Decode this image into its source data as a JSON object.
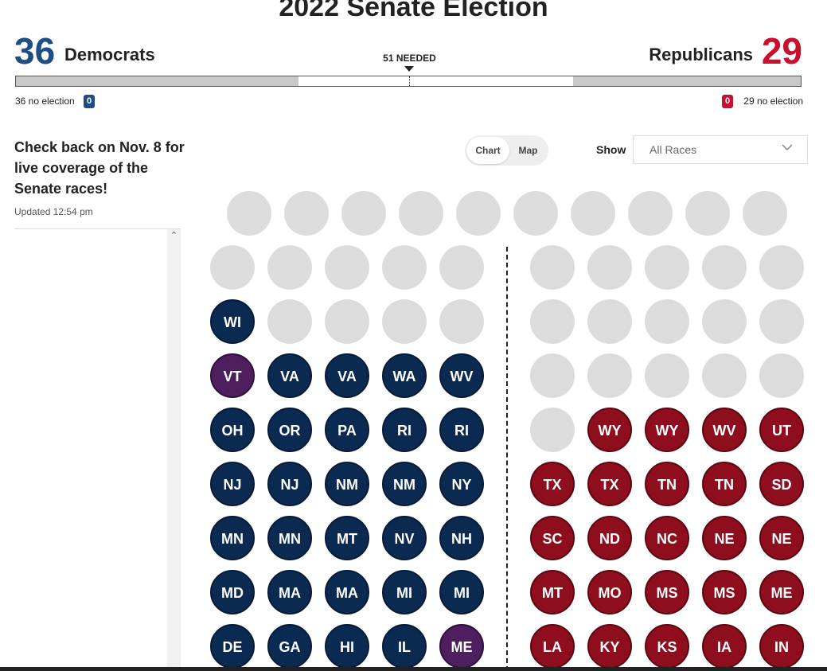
{
  "header": {
    "title": "2022 Senate Election",
    "needed_label": "51 NEEDED"
  },
  "democrats": {
    "count": "36",
    "label": "Democrats",
    "no_election": "36 no election",
    "badge": "0",
    "color": "#1f4e85",
    "no_election_share": 0.36
  },
  "republicans": {
    "count": "29",
    "label": "Republicans",
    "no_election": "29 no election",
    "badge": "0",
    "color": "#c8102e",
    "no_election_share": 0.29
  },
  "sidebar": {
    "headline": "Check back on Nov. 8 for live coverage of the Senate races!",
    "updated": "Updated 12:54 pm"
  },
  "controls": {
    "toggle_chart": "Chart",
    "toggle_map": "Map",
    "show_label": "Show",
    "show_value": "All Races"
  },
  "seat_colors": {
    "democrat": "#0b2a52",
    "republican": "#8f0e1e",
    "independent": "#4d1f5e",
    "undecided": "#dcdcdc"
  },
  "seat_rows": [
    {
      "left": [
        "",
        "",
        "",
        "",
        ""
      ],
      "right": [
        "",
        "",
        "",
        "",
        ""
      ],
      "top": true
    },
    {
      "left": [
        "",
        "",
        "",
        "",
        ""
      ],
      "right": [
        "",
        "",
        "",
        "",
        ""
      ]
    },
    {
      "left": [
        "WI:dem",
        "",
        "",
        "",
        ""
      ],
      "right": [
        "",
        "",
        "",
        "",
        ""
      ]
    },
    {
      "left": [
        "VT:ind",
        "VA:dem",
        "VA:dem",
        "WA:dem",
        "WV:dem"
      ],
      "right": [
        "",
        "",
        "",
        "",
        ""
      ]
    },
    {
      "left": [
        "OH:dem",
        "OR:dem",
        "PA:dem",
        "RI:dem",
        "RI:dem"
      ],
      "right": [
        "",
        "WY:rep",
        "WY:rep",
        "WV:rep",
        "UT:rep"
      ]
    },
    {
      "left": [
        "NJ:dem",
        "NJ:dem",
        "NM:dem",
        "NM:dem",
        "NY:dem"
      ],
      "right": [
        "TX:rep",
        "TX:rep",
        "TN:rep",
        "TN:rep",
        "SD:rep"
      ]
    },
    {
      "left": [
        "MN:dem",
        "MN:dem",
        "MT:dem",
        "NV:dem",
        "NH:dem"
      ],
      "right": [
        "SC:rep",
        "ND:rep",
        "NC:rep",
        "NE:rep",
        "NE:rep"
      ]
    },
    {
      "left": [
        "MD:dem",
        "MA:dem",
        "MA:dem",
        "MI:dem",
        "MI:dem"
      ],
      "right": [
        "MT:rep",
        "MO:rep",
        "MS:rep",
        "MS:rep",
        "ME:rep"
      ]
    },
    {
      "left": [
        "DE:dem",
        "GA:dem",
        "HI:dem",
        "IL:dem",
        "ME:ind"
      ],
      "right": [
        "LA:rep",
        "KY:rep",
        "KS:rep",
        "IA:rep",
        "IN:rep"
      ]
    }
  ]
}
